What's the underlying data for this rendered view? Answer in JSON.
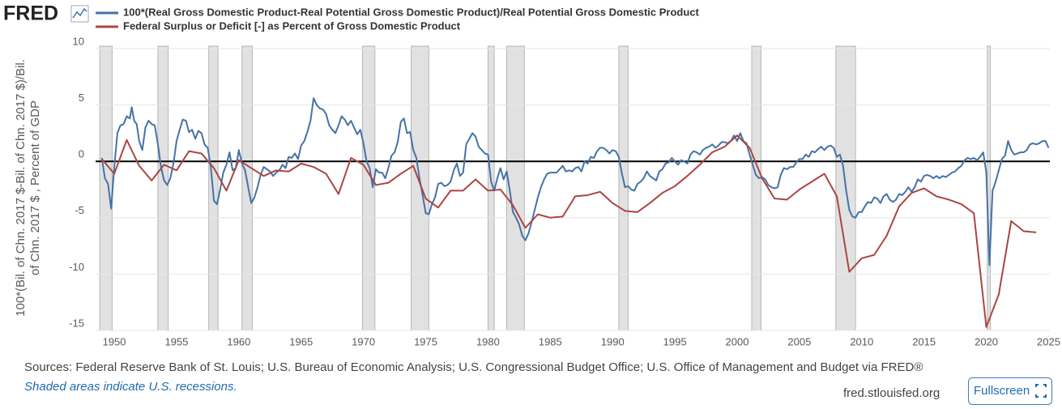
{
  "header": {
    "logo": "FRED"
  },
  "chart_data": {
    "type": "line",
    "y_label": [
      "100*(Bil. of Chn. 2017 $-Bil. of Chn. 2017 $)/Bil.",
      "of Chn. 2017 $ , Percent of GDP"
    ],
    "xlim": [
      1948.5,
      2025.1
    ],
    "xticks": [
      1950,
      1955,
      1960,
      1965,
      1970,
      1975,
      1980,
      1985,
      1990,
      1995,
      2000,
      2005,
      2010,
      2015,
      2020,
      2025
    ],
    "ylim": [
      -15,
      10
    ],
    "yticks": [
      10,
      5,
      0,
      -5,
      -10,
      -15
    ],
    "grid": true,
    "zero_line": true,
    "legend": "top-left",
    "recessions": [
      [
        1948.83,
        1949.83
      ],
      [
        1953.5,
        1954.33
      ],
      [
        1957.58,
        1958.33
      ],
      [
        1960.25,
        1961.08
      ],
      [
        1969.92,
        1970.92
      ],
      [
        1973.83,
        1975.25
      ],
      [
        1980.0,
        1980.5
      ],
      [
        1981.5,
        1982.92
      ],
      [
        1990.5,
        1991.25
      ],
      [
        2001.17,
        2001.92
      ],
      [
        2007.92,
        2009.5
      ],
      [
        2020.08,
        2020.33
      ]
    ],
    "series": [
      {
        "name": "100*(Real Gross Domestic Product-Real Potential Gross Domestic Product)/Real Potential Gross Domestic Product",
        "color": "#4572a7",
        "x": [
          1949.0,
          1949.25,
          1949.5,
          1949.75,
          1950.0,
          1950.25,
          1950.5,
          1950.75,
          1951.0,
          1951.25,
          1951.4,
          1951.6,
          1951.8,
          1952.0,
          1952.25,
          1952.5,
          1952.75,
          1953.0,
          1953.25,
          1953.5,
          1953.75,
          1954.0,
          1954.25,
          1954.5,
          1954.75,
          1955.0,
          1955.25,
          1955.5,
          1955.75,
          1956.0,
          1956.25,
          1956.5,
          1956.75,
          1957.0,
          1957.25,
          1957.5,
          1957.75,
          1958.0,
          1958.25,
          1958.5,
          1958.75,
          1959.0,
          1959.25,
          1959.5,
          1959.75,
          1960.0,
          1960.25,
          1960.5,
          1960.75,
          1961.0,
          1961.25,
          1961.5,
          1961.75,
          1962.0,
          1962.25,
          1962.5,
          1962.75,
          1963.0,
          1963.25,
          1963.5,
          1963.75,
          1964.0,
          1964.25,
          1964.5,
          1964.75,
          1965.0,
          1965.25,
          1965.5,
          1965.75,
          1966.0,
          1966.25,
          1966.5,
          1966.75,
          1967.0,
          1967.25,
          1967.5,
          1967.75,
          1968.0,
          1968.25,
          1968.5,
          1968.75,
          1969.0,
          1969.25,
          1969.5,
          1969.75,
          1970.0,
          1970.25,
          1970.5,
          1970.75,
          1971.0,
          1971.25,
          1971.5,
          1971.75,
          1972.0,
          1972.25,
          1972.5,
          1972.75,
          1973.0,
          1973.25,
          1973.5,
          1973.75,
          1974.0,
          1974.25,
          1974.5,
          1974.75,
          1975.0,
          1975.25,
          1975.5,
          1975.75,
          1976.0,
          1976.25,
          1976.5,
          1976.75,
          1977.0,
          1977.25,
          1977.5,
          1977.75,
          1978.0,
          1978.25,
          1978.5,
          1978.75,
          1979.0,
          1979.25,
          1979.5,
          1979.75,
          1980.0,
          1980.25,
          1980.5,
          1980.75,
          1981.0,
          1981.25,
          1981.5,
          1981.75,
          1982.0,
          1982.25,
          1982.5,
          1982.75,
          1983.0,
          1983.25,
          1983.5,
          1983.75,
          1984.0,
          1984.25,
          1984.5,
          1984.75,
          1985.0,
          1985.5,
          1985.75,
          1986.0,
          1986.25,
          1986.5,
          1986.75,
          1987.0,
          1987.25,
          1987.5,
          1987.75,
          1988.0,
          1988.25,
          1988.5,
          1988.75,
          1989.0,
          1989.25,
          1989.5,
          1989.75,
          1990.0,
          1990.25,
          1990.5,
          1990.75,
          1991.0,
          1991.25,
          1991.5,
          1991.75,
          1992.0,
          1992.25,
          1992.5,
          1992.75,
          1993.0,
          1993.25,
          1993.5,
          1993.75,
          1994.0,
          1994.25,
          1994.5,
          1994.75,
          1995.0,
          1995.25,
          1995.5,
          1995.75,
          1996.0,
          1996.25,
          1996.5,
          1996.75,
          1997.0,
          1997.25,
          1997.5,
          1997.75,
          1998.0,
          1998.25,
          1998.5,
          1998.75,
          1999.0,
          1999.25,
          1999.5,
          1999.75,
          2000.0,
          2000.25,
          2000.5,
          2000.75,
          2001.0,
          2001.25,
          2001.5,
          2001.75,
          2002.0,
          2002.25,
          2002.5,
          2002.75,
          2003.0,
          2003.25,
          2003.5,
          2003.75,
          2004.0,
          2004.25,
          2004.5,
          2004.75,
          2005.0,
          2005.25,
          2005.5,
          2005.75,
          2006.0,
          2006.25,
          2006.5,
          2006.75,
          2007.0,
          2007.25,
          2007.5,
          2007.75,
          2008.0,
          2008.25,
          2008.5,
          2008.75,
          2009.0,
          2009.25,
          2009.5,
          2009.75,
          2010.0,
          2010.25,
          2010.5,
          2010.75,
          2011.0,
          2011.25,
          2011.5,
          2011.75,
          2012.0,
          2012.25,
          2012.5,
          2012.75,
          2013.0,
          2013.25,
          2013.5,
          2013.75,
          2014.0,
          2014.25,
          2014.5,
          2014.75,
          2015.0,
          2015.25,
          2015.5,
          2015.75,
          2016.0,
          2016.25,
          2016.5,
          2016.75,
          2017.0,
          2017.25,
          2017.5,
          2017.75,
          2018.0,
          2018.25,
          2018.5,
          2018.75,
          2019.0,
          2019.25,
          2019.5,
          2019.75,
          2020.0,
          2020.25,
          2020.5,
          2020.75,
          2021.0,
          2021.25,
          2021.5,
          2021.75,
          2022.0,
          2022.25,
          2022.5,
          2022.75,
          2023.0,
          2023.25,
          2023.5,
          2023.75,
          2024.0,
          2024.25,
          2024.5,
          2024.75,
          2025.0
        ],
        "values": [
          0.3,
          -1.5,
          -2.0,
          -4.2,
          -0.5,
          2.5,
          3.2,
          3.3,
          4.0,
          3.8,
          4.8,
          3.6,
          3.3,
          1.8,
          1.0,
          3.0,
          3.6,
          3.3,
          3.2,
          1.5,
          -0.5,
          -1.7,
          -2.1,
          -1.5,
          -0.2,
          1.8,
          2.8,
          3.7,
          3.6,
          2.6,
          2.8,
          2.0,
          2.7,
          2.5,
          1.5,
          1.2,
          -0.5,
          -3.5,
          -3.8,
          -2.5,
          -1.0,
          -0.3,
          0.8,
          -0.8,
          -0.6,
          1.0,
          -0.2,
          -0.8,
          -2.3,
          -3.7,
          -3.2,
          -2.3,
          -1.2,
          -0.5,
          -0.7,
          -0.9,
          -1.3,
          -1.0,
          -0.8,
          -0.3,
          -0.6,
          0.4,
          0.3,
          0.7,
          0.2,
          1.4,
          1.8,
          2.6,
          3.6,
          5.6,
          5.0,
          4.7,
          4.6,
          4.2,
          3.2,
          2.8,
          2.5,
          3.2,
          4.0,
          3.7,
          3.2,
          3.6,
          3.0,
          2.4,
          2.8,
          1.6,
          0.0,
          -0.6,
          -2.3,
          -0.7,
          -1.0,
          -1.0,
          -1.5,
          -0.6,
          0.5,
          0.8,
          1.7,
          3.5,
          3.8,
          2.5,
          2.6,
          1.0,
          0.3,
          -1.5,
          -3.0,
          -4.6,
          -4.7,
          -3.8,
          -3.2,
          -2.0,
          -1.9,
          -2.2,
          -2.1,
          -1.8,
          -0.8,
          -0.2,
          -1.3,
          -1.0,
          1.5,
          2.0,
          2.5,
          2.2,
          1.3,
          1.0,
          0.7,
          0.6,
          -1.8,
          -2.6,
          -1.5,
          -0.6,
          -1.6,
          -0.9,
          -2.6,
          -4.5,
          -5.0,
          -5.6,
          -6.6,
          -7.0,
          -6.4,
          -5.4,
          -4.3,
          -3.2,
          -2.3,
          -1.6,
          -1.1,
          -1.0,
          -1.0,
          -0.7,
          -0.4,
          -0.9,
          -0.8,
          -0.9,
          -0.6,
          -0.5,
          -0.9,
          0.0,
          -0.2,
          0.4,
          0.3,
          0.9,
          1.2,
          1.2,
          1.0,
          0.7,
          1.0,
          0.9,
          0.4,
          -1.1,
          -2.3,
          -2.2,
          -2.5,
          -2.6,
          -2.0,
          -1.8,
          -1.5,
          -0.9,
          -1.3,
          -1.5,
          -1.7,
          -0.9,
          -0.7,
          -0.2,
          -0.1,
          0.3,
          0.0,
          -0.3,
          0.1,
          0.0,
          -0.2,
          0.6,
          0.9,
          0.8,
          0.6,
          1.0,
          1.2,
          1.3,
          1.5,
          1.2,
          1.4,
          1.7,
          1.7,
          1.6,
          1.8,
          2.3,
          1.8,
          2.5,
          1.8,
          1.6,
          0.6,
          -0.3,
          -1.2,
          -1.5,
          -1.4,
          -1.6,
          -2.1,
          -2.3,
          -2.4,
          -2.3,
          -1.2,
          -0.6,
          -0.7,
          -0.5,
          -0.5,
          -0.1,
          0.2,
          0.2,
          0.6,
          0.4,
          0.9,
          0.8,
          1.1,
          1.3,
          1.0,
          1.3,
          1.4,
          1.2,
          0.4,
          0.6,
          -0.4,
          -2.6,
          -4.3,
          -4.9,
          -5.0,
          -4.5,
          -4.5,
          -4.0,
          -3.6,
          -3.7,
          -3.2,
          -3.3,
          -3.7,
          -3.1,
          -2.9,
          -3.4,
          -3.6,
          -3.4,
          -2.9,
          -3.0,
          -2.7,
          -2.3,
          -2.7,
          -2.3,
          -1.6,
          -1.8,
          -1.3,
          -1.2,
          -1.3,
          -1.5,
          -1.3,
          -1.5,
          -1.3,
          -1.4,
          -1.2,
          -1.0,
          -0.9,
          -0.6,
          -0.4,
          0.1,
          0.3,
          0.2,
          0.3,
          0.1,
          0.4,
          0.8,
          -1.0,
          -9.2,
          -2.6,
          -1.8,
          -0.8,
          0.2,
          0.5,
          1.8,
          1.0,
          0.6,
          0.7,
          0.8,
          0.8,
          1.0,
          1.5,
          1.6,
          1.5,
          1.6,
          1.8,
          1.8,
          1.2
        ]
      },
      {
        "name": "Federal Surplus or Deficit [-] as Percent of Gross Domestic Product",
        "color": "#aa4643",
        "x": [
          1949,
          1950,
          1951,
          1952,
          1953,
          1954,
          1955,
          1956,
          1957,
          1958,
          1959,
          1960,
          1961,
          1962,
          1963,
          1964,
          1965,
          1966,
          1967,
          1968,
          1969,
          1970,
          1971,
          1972,
          1973,
          1974,
          1975,
          1976,
          1977,
          1978,
          1979,
          1980,
          1981,
          1982,
          1983,
          1984,
          1985,
          1986,
          1987,
          1988,
          1989,
          1990,
          1991,
          1992,
          1993,
          1994,
          1995,
          1996,
          1997,
          1998,
          1999,
          2000,
          2001,
          2002,
          2003,
          2004,
          2005,
          2006,
          2007,
          2008,
          2009,
          2010,
          2011,
          2012,
          2013,
          2014,
          2015,
          2016,
          2017,
          2018,
          2019,
          2020,
          2021,
          2022,
          2023,
          2024
        ],
        "values": [
          0.2,
          -1.1,
          1.9,
          -0.4,
          -1.7,
          -0.3,
          -0.8,
          0.9,
          0.7,
          -0.6,
          -2.6,
          0.1,
          -0.6,
          -1.3,
          -0.8,
          -0.9,
          -0.2,
          -0.5,
          -1.1,
          -2.9,
          0.3,
          -0.3,
          -2.1,
          -1.9,
          -1.1,
          -0.4,
          -3.3,
          -4.1,
          -2.6,
          -2.6,
          -1.6,
          -2.6,
          -2.5,
          -3.9,
          -5.9,
          -4.7,
          -5.0,
          -4.9,
          -3.1,
          -3.0,
          -2.7,
          -3.7,
          -4.4,
          -4.5,
          -3.7,
          -2.8,
          -2.2,
          -1.3,
          -0.3,
          0.8,
          1.3,
          2.3,
          1.2,
          -1.5,
          -3.3,
          -3.4,
          -2.5,
          -1.8,
          -1.1,
          -3.1,
          -9.8,
          -8.6,
          -8.3,
          -6.6,
          -4.0,
          -2.8,
          -2.4,
          -3.1,
          -3.4,
          -3.8,
          -4.6,
          -14.7,
          -11.8,
          -5.3,
          -6.2,
          -6.3
        ]
      }
    ]
  },
  "footer": {
    "sources": "Sources: Federal Reserve Bank of St. Louis; U.S. Bureau of Economic Analysis; U.S. Congressional Budget Office; U.S. Office of Management and Budget via FRED®",
    "note": "Shaded areas indicate U.S. recessions.",
    "site": "fred.stlouisfed.org",
    "button": "Fullscreen"
  }
}
